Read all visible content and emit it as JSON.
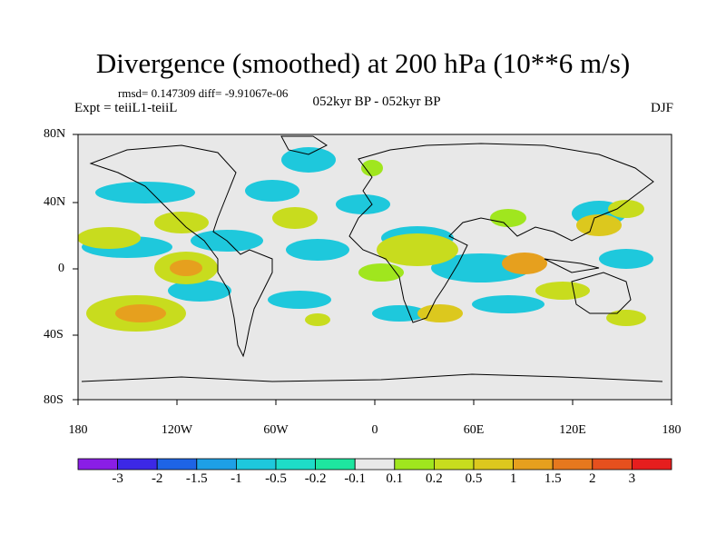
{
  "title": "Divergence (smoothed) at 200 hPa (10**6 m/s)",
  "stats_line": "rmsd= 0.147309 diff= -9.91067e-06",
  "experiment": "Expt = teiiL1-teiiL",
  "period": "052kyr BP - 052kyr BP",
  "season": "DJF",
  "map": {
    "lat_ticks": [
      "80N",
      "40N",
      "0",
      "40S",
      "80S"
    ],
    "lon_ticks": [
      "180",
      "120W",
      "60W",
      "0",
      "60E",
      "120E",
      "180"
    ],
    "land_color": "#e8e8e8"
  },
  "colorbar": {
    "colors": [
      "#8a1ee6",
      "#3c28e6",
      "#1e64e6",
      "#1ea0e6",
      "#1ec8dc",
      "#1edcc8",
      "#1ee6a0",
      "#e8e8e8",
      "#a0e61e",
      "#c8dc1e",
      "#dcc81e",
      "#e6a01e",
      "#e6781e",
      "#e6501e",
      "#e61e1e"
    ],
    "labels": [
      "-3",
      "-2",
      "-1.5",
      "-1",
      "-0.5",
      "-0.2",
      "-0.1",
      "0.1",
      "0.2",
      "0.5",
      "1",
      "1.5",
      "2",
      "3"
    ]
  }
}
